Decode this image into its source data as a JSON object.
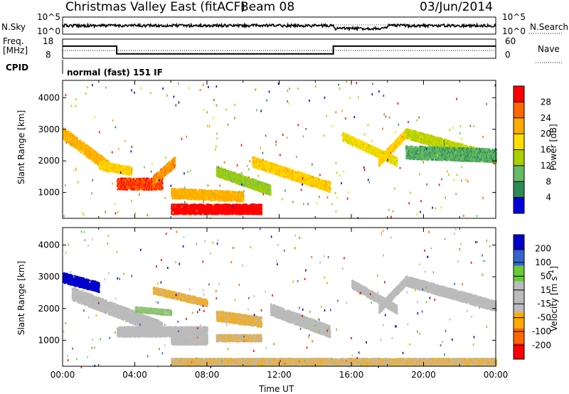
{
  "header": {
    "title": "Christmas Valley East (fitACF)",
    "beam": "Beam 08",
    "date": "03/Jun/2014"
  },
  "top_panels": {
    "nsky_label": "N.Sky",
    "nsky_ticks": [
      "10^5",
      "10^0"
    ],
    "nsearch_label": "N.Search",
    "nsearch_ticks": [
      "10^5",
      "10^0"
    ],
    "freq_label_1": "Freq.",
    "freq_label_2": "[MHz]",
    "freq_ticks": [
      "18",
      "8"
    ],
    "nave_label": "Nave",
    "nave_ticks": [
      "60",
      "0"
    ],
    "cpid_label": "CPID",
    "cpid_value": "normal (fast) 151 IF",
    "freq_series_mhz": [
      {
        "t": 0,
        "f": 14.7
      },
      {
        "t": 3.0,
        "f": 14.7
      },
      {
        "t": 3.0,
        "f": 10.2
      },
      {
        "t": 15.0,
        "f": 10.2
      },
      {
        "t": 15.0,
        "f": 14.7
      },
      {
        "t": 24,
        "f": 14.7
      }
    ]
  },
  "chart_data": [
    {
      "type": "heatmap",
      "name": "power",
      "ylabel": "Slant Range [km]",
      "xlabel": "",
      "y_ticks": [
        1000,
        2000,
        3000,
        4000
      ],
      "ylim": [
        180,
        4550
      ],
      "xlim": [
        0,
        24
      ],
      "colorbar_label": "Power [dB]",
      "colorbar_ticks": [
        "4",
        "8",
        "12",
        "16",
        "20",
        "24",
        "28"
      ],
      "colorbar_range": [
        0,
        30
      ],
      "colors": [
        "#0000dd",
        "#2e8b57",
        "#66bb66",
        "#aad000",
        "#ffdd00",
        "#ffaa00",
        "#ff6600",
        "#ff0000"
      ],
      "bands": [
        {
          "t0": 0.0,
          "t1": 2.5,
          "r0": 2900,
          "r1": 1850,
          "w": 350,
          "v": 20
        },
        {
          "t0": 2.0,
          "t1": 3.8,
          "r0": 1900,
          "r1": 1700,
          "w": 250,
          "v": 18
        },
        {
          "t0": 3.0,
          "t1": 5.5,
          "r0": 1300,
          "r1": 1300,
          "w": 350,
          "v": 26
        },
        {
          "t0": 5.0,
          "t1": 6.2,
          "r0": 1400,
          "r1": 2000,
          "w": 300,
          "v": 22
        },
        {
          "t0": 6.0,
          "t1": 11.0,
          "r0": 500,
          "r1": 500,
          "w": 300,
          "v": 28
        },
        {
          "t0": 8.5,
          "t1": 11.5,
          "r0": 1700,
          "r1": 1100,
          "w": 300,
          "v": 12
        },
        {
          "t0": 10.5,
          "t1": 14.8,
          "r0": 2000,
          "r1": 1200,
          "w": 300,
          "v": 18
        },
        {
          "t0": 15.5,
          "t1": 18.5,
          "r0": 2800,
          "r1": 2000,
          "w": 250,
          "v": 16
        },
        {
          "t0": 17.5,
          "t1": 19.0,
          "r0": 2000,
          "r1": 2900,
          "w": 250,
          "v": 18
        },
        {
          "t0": 19.0,
          "t1": 24.0,
          "r0": 2900,
          "r1": 2100,
          "w": 300,
          "v": 14
        },
        {
          "t0": 19.0,
          "t1": 24.0,
          "r0": 2300,
          "r1": 2200,
          "w": 400,
          "v": 8
        },
        {
          "t0": 6.0,
          "t1": 10.0,
          "r0": 1000,
          "r1": 900,
          "w": 300,
          "v": 20
        }
      ]
    },
    {
      "type": "heatmap",
      "name": "velocity",
      "ylabel": "Slant Range [km]",
      "xlabel": "Time UT",
      "y_ticks": [
        1000,
        2000,
        3000,
        4000
      ],
      "ylim": [
        180,
        4550
      ],
      "xlim": [
        0,
        24
      ],
      "x_tick_labels": [
        "00:00",
        "04:00",
        "08:00",
        "12:00",
        "16:00",
        "20:00",
        "00:00"
      ],
      "colorbar_label": "Velocity [m s-1]",
      "colorbar_ticks": [
        "-200",
        "-100",
        "-50",
        "-15",
        "15",
        "50",
        "100",
        "200"
      ],
      "colorbar_range": [
        -250,
        250
      ],
      "colors": [
        "#ff0000",
        "#ff6600",
        "#ffaa00",
        "#bbbbbb",
        "#bbbbbb",
        "#66cc33",
        "#3366cc",
        "#0000cc"
      ],
      "bands": [
        {
          "t0": 0.0,
          "t1": 2.0,
          "r0": 3000,
          "r1": 2700,
          "w": 300,
          "v": 220
        },
        {
          "t0": 0.5,
          "t1": 5.5,
          "r0": 2500,
          "r1": 1400,
          "w": 400,
          "v": 0
        },
        {
          "t0": 5.0,
          "t1": 8.0,
          "r0": 2600,
          "r1": 2200,
          "w": 200,
          "v": -70
        },
        {
          "t0": 4.0,
          "t1": 6.0,
          "r0": 2000,
          "r1": 1900,
          "w": 150,
          "v": 60
        },
        {
          "t0": 8.5,
          "t1": 11.0,
          "r0": 1800,
          "r1": 1600,
          "w": 300,
          "v": -70
        },
        {
          "t0": 8.5,
          "t1": 11.0,
          "r0": 1100,
          "r1": 1100,
          "w": 200,
          "v": -60
        },
        {
          "t0": 6.0,
          "t1": 8.0,
          "r0": 1000,
          "r1": 1000,
          "w": 200,
          "v": 0
        },
        {
          "t0": 11.5,
          "t1": 14.8,
          "r0": 2000,
          "r1": 1300,
          "w": 350,
          "v": 0
        },
        {
          "t0": 16.0,
          "t1": 18.5,
          "r0": 2800,
          "r1": 2000,
          "w": 250,
          "v": 0
        },
        {
          "t0": 17.5,
          "t1": 19.0,
          "r0": 2000,
          "r1": 2900,
          "w": 250,
          "v": 0
        },
        {
          "t0": 19.0,
          "t1": 24.0,
          "r0": 2900,
          "r1": 2100,
          "w": 300,
          "v": 0
        },
        {
          "t0": 6.0,
          "t1": 24.0,
          "r0": 350,
          "r1": 350,
          "w": 200,
          "v": -60
        },
        {
          "t0": 3.0,
          "t1": 8.0,
          "r0": 1300,
          "r1": 1300,
          "w": 300,
          "v": 0
        }
      ]
    }
  ]
}
